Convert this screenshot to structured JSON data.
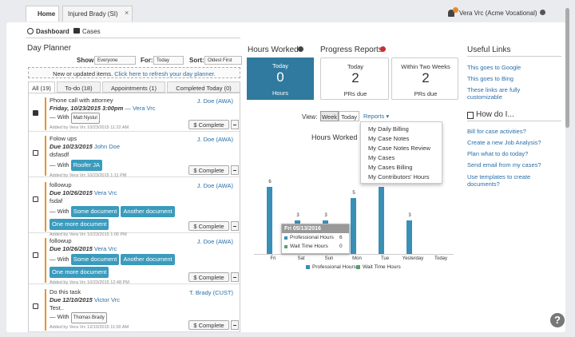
{
  "tabs": {
    "home": "Home",
    "case": "Injured Brady (SI)",
    "close": "×"
  },
  "user": "Vera Vrc (Acme Vocational)",
  "nav": {
    "dashboard": "Dashboard",
    "cases": "Cases"
  },
  "planner": {
    "title": "Day Planner",
    "filters": {
      "show_label": "Show:",
      "show": "Everyone",
      "for_label": "For:",
      "for": "Today",
      "sort_label": "Sort:",
      "sort": "Oldest First"
    },
    "notice": {
      "text": "New or updated items. ",
      "link": "Click here to refresh your day planner."
    },
    "tabs": [
      "All (19)",
      "To-do (18)",
      "Appointments (1)",
      "Completed Today (0)"
    ],
    "tasks": [
      {
        "title": "Phone call with attorney",
        "due": "Friday, 10/23/2015 3:00pm",
        "who": "— Vera Vrc",
        "assignee": "J. Doe (AWA)",
        "desc": null,
        "with": "— With",
        "person": "Matt Nystul",
        "tags": [],
        "added": "Added by Vera Vrc 10/23/2015 11:22 AM",
        "complete": "$ Complete"
      },
      {
        "title": "Folow ups",
        "due": "Due 10/23/2015",
        "who": "John Doe",
        "assignee": "J. Doe (AWA)",
        "desc": "dsfasdf",
        "with": "— With",
        "person": null,
        "tags": [
          "Roofer JA"
        ],
        "added": "Added by Vera Vrc 10/23/2015 1:11 PM",
        "complete": "$ Complete"
      },
      {
        "title": "followup",
        "due": "Due 10/26/2015",
        "who": "Vera Vrc",
        "assignee": "J. Doe (AWA)",
        "desc": "fsdaf",
        "with": "— With",
        "person": null,
        "tags": [
          "Some document",
          "Another document",
          "One more document"
        ],
        "added": "Added by Vera Vrc 10/23/2015 1:06 PM",
        "complete": "$ Complete"
      },
      {
        "title": "followup",
        "due": "Due 10/26/2015",
        "who": "Vera Vrc",
        "assignee": "J. Doe (AWA)",
        "desc": null,
        "with": "— With",
        "person": null,
        "tags": [
          "Some document",
          "Another document",
          "One more document"
        ],
        "added": "Added by Vera Vrc 10/23/2015 12:48 PM",
        "complete": "$ Complete"
      },
      {
        "title": "Do this task",
        "due": "Due 12/10/2015",
        "who": "Victor Vrc",
        "assignee": "T. Brady (CUST)",
        "desc": "Test..",
        "with": "— With",
        "person": "Thomas Brady",
        "tags": [],
        "added": "Added by Vera Vrc 12/10/2015 11:00 AM",
        "complete": "$ Complete"
      }
    ]
  },
  "hours": {
    "title": "Hours Worked",
    "card": {
      "label": "Today",
      "value": 0,
      "unit": "Hours"
    }
  },
  "progress": {
    "title": "Progress Reports",
    "cards": [
      {
        "label": "Today",
        "value": 2,
        "unit": "PRs due"
      },
      {
        "label": "Within Two Weeks",
        "value": 2,
        "unit": "PRs due"
      }
    ]
  },
  "view": {
    "label": "View:",
    "week": "Week",
    "today": "Today",
    "reports": "Reports ▾",
    "menu": [
      "My Daily Billing",
      "My Case Notes",
      "My Case Notes Review",
      "My Cases",
      "My Cases Billing",
      "My Contributors' Hours"
    ]
  },
  "hours_chart": {
    "type": "bar",
    "title": "Hours Worked",
    "categories": [
      "Fri",
      "Sat",
      "Sun",
      "Mon",
      "Tue",
      "Yesterday",
      "Today"
    ],
    "ylim": [
      0,
      7
    ],
    "series": [
      {
        "name": "Professional Hours",
        "color": "#3a8fb7",
        "values": [
          6,
          3,
          3,
          5,
          6,
          3,
          0
        ]
      },
      {
        "name": "Wait Time Hours",
        "color": "#5a9e6e",
        "values": [
          0,
          0,
          0,
          0,
          0,
          0,
          0
        ]
      }
    ],
    "tooltip": {
      "title": "Fri 05/13/2016",
      "rows": [
        {
          "name": "Professional Hours",
          "value": 6
        },
        {
          "name": "Wait Time Hours",
          "value": 0
        }
      ]
    }
  },
  "links": {
    "title": "Useful Links",
    "items": [
      "This goes to Google",
      "This goes to Bing",
      "These links are fully customizable"
    ]
  },
  "howto": {
    "title": "How do I...",
    "items": [
      "Bill for case activities?",
      "Create a new Job Analysis?",
      "Plan what to do today?",
      "Send email from my cases?",
      "Use templates to create documents?"
    ]
  },
  "help": "?"
}
